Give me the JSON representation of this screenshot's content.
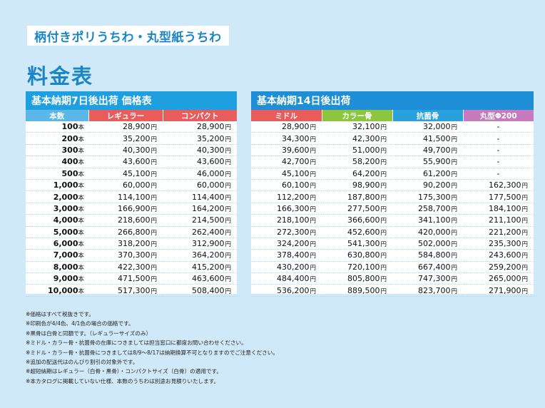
{
  "title": "柄付きポリうちわ・丸型紙うちわ",
  "heading": "料金表",
  "yen": "円",
  "unit": "本",
  "dash": "-",
  "left_table": {
    "header": "基本納期7日後出荷 価格表",
    "columns": [
      {
        "label": "本数",
        "color": "#5bb7e8"
      },
      {
        "label": "レギュラー",
        "color": "#e95c5c"
      },
      {
        "label": "コンパクト",
        "color": "#e95c5c"
      }
    ],
    "rows": [
      {
        "qty": "100",
        "regular": "28,900",
        "compact": "28,900"
      },
      {
        "qty": "200",
        "regular": "35,200",
        "compact": "35,200"
      },
      {
        "qty": "300",
        "regular": "40,300",
        "compact": "40,300"
      },
      {
        "qty": "400",
        "regular": "43,600",
        "compact": "43,600"
      },
      {
        "qty": "500",
        "regular": "45,100",
        "compact": "46,000"
      },
      {
        "qty": "1,000",
        "regular": "60,000",
        "compact": "60,000"
      },
      {
        "qty": "2,000",
        "regular": "114,100",
        "compact": "114,400"
      },
      {
        "qty": "3,000",
        "regular": "166,900",
        "compact": "164,200"
      },
      {
        "qty": "4,000",
        "regular": "218,600",
        "compact": "214,500"
      },
      {
        "qty": "5,000",
        "regular": "266,800",
        "compact": "262,400"
      },
      {
        "qty": "6,000",
        "regular": "318,200",
        "compact": "312,900"
      },
      {
        "qty": "7,000",
        "regular": "370,300",
        "compact": "364,200"
      },
      {
        "qty": "8,000",
        "regular": "422,300",
        "compact": "415,200"
      },
      {
        "qty": "9,000",
        "regular": "471,500",
        "compact": "463,600"
      },
      {
        "qty": "10,000",
        "regular": "517,300",
        "compact": "508,400"
      }
    ]
  },
  "right_table": {
    "header": "基本納期14日後出荷",
    "columns": [
      {
        "label": "ミドル",
        "color": "#e95c5c"
      },
      {
        "label": "カラー骨",
        "color": "#8cc63f"
      },
      {
        "label": "抗菌骨",
        "color": "#2aa0dc"
      },
      {
        "label": "丸型Φ200",
        "color": "#c77bbf"
      }
    ],
    "rows": [
      {
        "middle": "28,900",
        "color_bone": "32,100",
        "antibac": "32,000",
        "round": null
      },
      {
        "middle": "34,300",
        "color_bone": "42,300",
        "antibac": "41,500",
        "round": null
      },
      {
        "middle": "39,600",
        "color_bone": "51,000",
        "antibac": "49,700",
        "round": null
      },
      {
        "middle": "42,700",
        "color_bone": "58,200",
        "antibac": "55,900",
        "round": null
      },
      {
        "middle": "45,100",
        "color_bone": "64,200",
        "antibac": "61,200",
        "round": null
      },
      {
        "middle": "60,100",
        "color_bone": "98,900",
        "antibac": "90,200",
        "round": "162,300"
      },
      {
        "middle": "112,200",
        "color_bone": "187,800",
        "antibac": "175,300",
        "round": "177,500"
      },
      {
        "middle": "166,300",
        "color_bone": "277,500",
        "antibac": "258,700",
        "round": "184,100"
      },
      {
        "middle": "218,100",
        "color_bone": "366,600",
        "antibac": "341,100",
        "round": "211,100"
      },
      {
        "middle": "272,300",
        "color_bone": "452,600",
        "antibac": "420,000",
        "round": "221,200"
      },
      {
        "middle": "324,200",
        "color_bone": "541,300",
        "antibac": "502,000",
        "round": "235,300"
      },
      {
        "middle": "378,400",
        "color_bone": "630,800",
        "antibac": "584,800",
        "round": "243,600"
      },
      {
        "middle": "430,200",
        "color_bone": "720,100",
        "antibac": "667,400",
        "round": "259,200"
      },
      {
        "middle": "484,400",
        "color_bone": "805,800",
        "antibac": "747,300",
        "round": "265,000"
      },
      {
        "middle": "536,200",
        "color_bone": "889,500",
        "antibac": "823,700",
        "round": "271,900"
      }
    ]
  },
  "notes": [
    "※価格はすべて税抜きです。",
    "※印刷色が4/4色、4/1色の場合の価格です。",
    "※黒骨は白骨と同額です。（レギュラーサイズのみ）",
    "※ミドル・カラー骨・抗菌骨の在庫につきましては担当窓口に都度お問い合わせください。",
    "※ミドル・カラー骨・抗菌骨につきましては8/9〜8/17は納期換算不可となりますのでご注意ください。",
    "※追加の配送代はのんびり割引の対象外です。",
    "※超短納期はレギュラー（白骨・黒骨）・コンパクトサイズ（白骨）の適用です。",
    "※本カタログに掲載していない仕様、本数のうちわは別途お見積りいたします。"
  ]
}
